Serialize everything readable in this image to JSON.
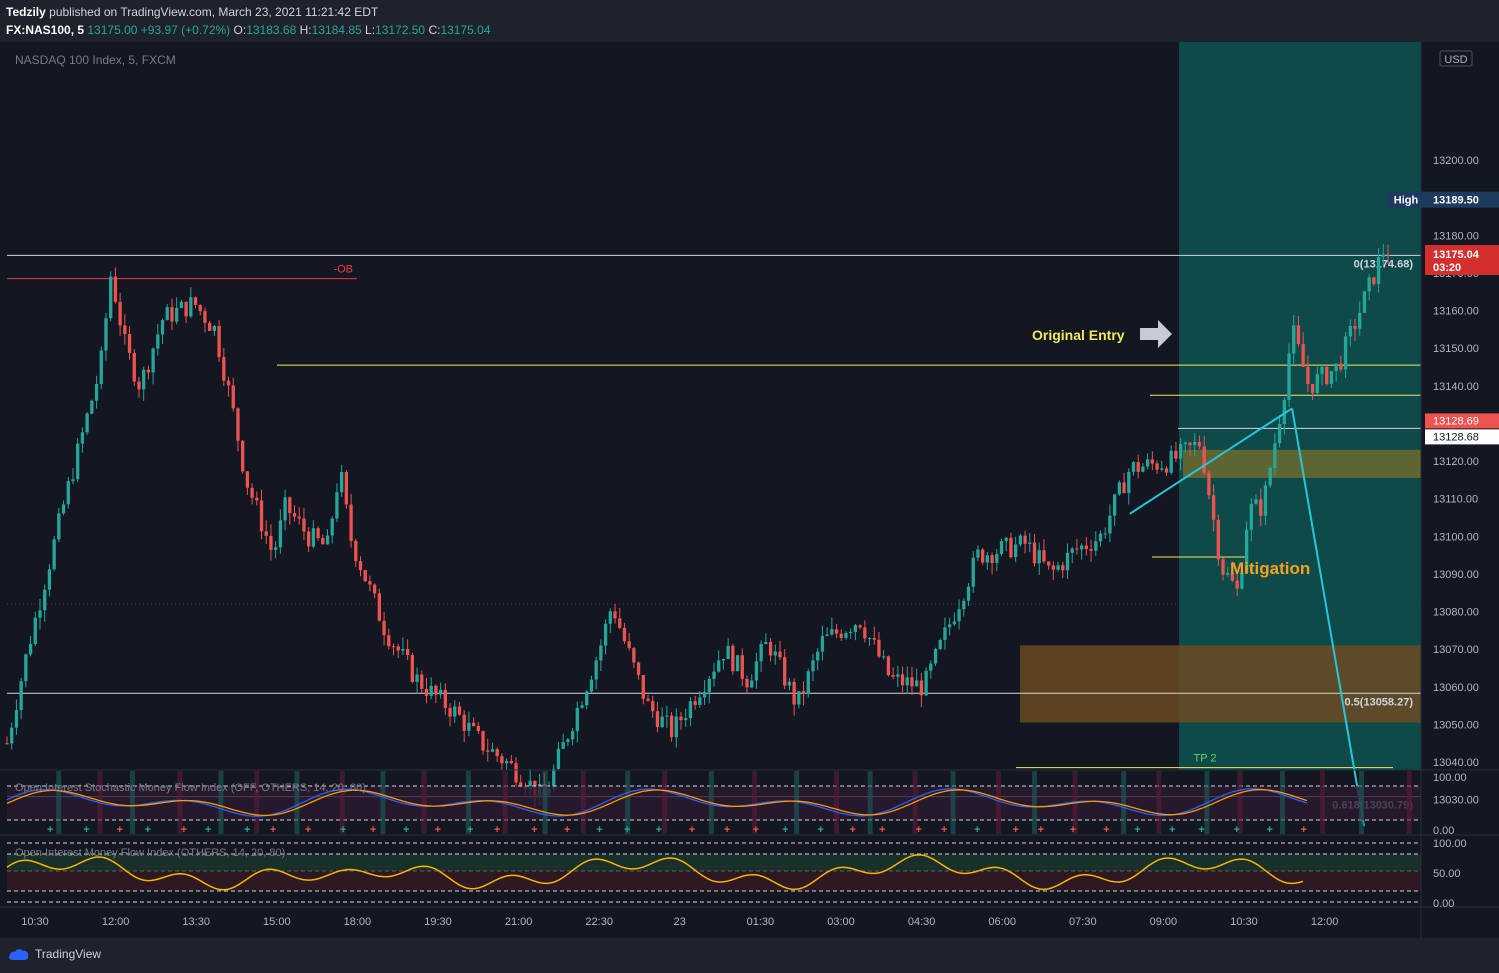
{
  "header": {
    "author": "Tedzily",
    "published_text": "published on TradingView.com, March 23, 2021 11:21:42 EDT",
    "symbol": "FX:NAS100, 5",
    "last": "13175.00",
    "change": "+93.97 (+0.72%)",
    "o_label": "O:",
    "o_value": "13183.68",
    "h_label": "H:",
    "h_value": "13184.85",
    "l_label": "L:",
    "l_value": "13172.50",
    "c_label": "C:",
    "c_value": "13175.04"
  },
  "chart_data": {
    "type": "candlestick",
    "title": "NASDAQ 100 Index, 5, FXCM",
    "currency": "USD",
    "ylim": [
      13023,
      13217
    ],
    "y_ticks": [
      13030,
      13040,
      13050,
      13060,
      13070,
      13080,
      13090,
      13100,
      13110,
      13120,
      13130,
      13140,
      13150,
      13160,
      13170,
      13180,
      13190,
      13200
    ],
    "x_ticks": [
      "10:30",
      "12:00",
      "13:30",
      "15:00",
      "18:00",
      "19:30",
      "21:00",
      "22:30",
      "23",
      "01:30",
      "03:00",
      "04:30",
      "06:00",
      "07:30",
      "09:00",
      "10:30",
      "12:00"
    ],
    "bar_count": 300,
    "bar_window": [
      0,
      295
    ],
    "price_path": [
      [
        0,
        13045
      ],
      [
        10,
        13070
      ],
      [
        28,
        13110
      ],
      [
        45,
        13145
      ],
      [
        50,
        13170
      ],
      [
        57,
        13150
      ],
      [
        64,
        13140
      ],
      [
        75,
        13158
      ],
      [
        90,
        13162
      ],
      [
        100,
        13155
      ],
      [
        108,
        13135
      ],
      [
        115,
        13115
      ],
      [
        128,
        13095
      ],
      [
        134,
        13108
      ],
      [
        145,
        13100
      ],
      [
        154,
        13097
      ],
      [
        160,
        13118
      ],
      [
        165,
        13100
      ],
      [
        175,
        13085
      ],
      [
        182,
        13075
      ],
      [
        197,
        13062
      ],
      [
        205,
        13058
      ],
      [
        216,
        13053
      ],
      [
        228,
        13045
      ],
      [
        240,
        13040
      ],
      [
        250,
        13035
      ],
      [
        258,
        13030
      ],
      [
        268,
        13045
      ],
      [
        285,
        13070
      ],
      [
        291,
        13082
      ],
      [
        297,
        13072
      ],
      [
        308,
        13055
      ],
      [
        320,
        13048
      ],
      [
        345,
        13070
      ],
      [
        356,
        13062
      ],
      [
        366,
        13072
      ],
      [
        380,
        13055
      ],
      [
        392,
        13072
      ],
      [
        410,
        13078
      ],
      [
        425,
        13062
      ],
      [
        441,
        13060
      ],
      [
        452,
        13075
      ],
      [
        467,
        13095
      ],
      [
        490,
        13098
      ],
      [
        502,
        13090
      ],
      [
        513,
        13096
      ],
      [
        526,
        13100
      ],
      [
        540,
        13118
      ],
      [
        560,
        13120
      ],
      [
        574,
        13125
      ],
      [
        584,
        13092
      ],
      [
        592,
        13085
      ],
      [
        597,
        13107
      ],
      [
        604,
        13108
      ],
      [
        614,
        13138
      ],
      [
        618,
        13155
      ],
      [
        626,
        13140
      ],
      [
        640,
        13145
      ],
      [
        662,
        13176
      ],
      [
        680,
        13178
      ]
    ],
    "plot_window": [
      0,
      680
    ],
    "price_points": [
      {
        "label": "High",
        "value": "13189.50"
      },
      {
        "label": "last",
        "value": "13175.04",
        "countdown": "03:20"
      },
      {
        "label": "line",
        "value": "13128.69"
      },
      {
        "label": "line",
        "value": "13128.68"
      }
    ],
    "fib_levels": [
      {
        "label": "0(13174.68)",
        "value": 13174.68
      },
      {
        "label": "0.5(13058.27)",
        "value": 13058.27
      },
      {
        "label": "0.618(13030.79)",
        "value": 13030.79
      }
    ],
    "horizontal_lines": [
      {
        "label": "-OB",
        "value": 13168.5,
        "color": "#f23645"
      },
      {
        "value": 13145.5,
        "color": "#f5e663"
      },
      {
        "value": 13137.5,
        "color": "#f5e663"
      },
      {
        "value": 13094.5,
        "color": "#f5e663"
      },
      {
        "label": "TP 2",
        "value": 13038.5,
        "color": "#f5e663"
      }
    ],
    "zones": [
      {
        "value_top": 13123,
        "value_bottom": 13115.5,
        "color": "#6b6b2e"
      },
      {
        "value_top": 13071,
        "value_bottom": 13050.5,
        "color": "#6b4a22"
      }
    ],
    "annotations": [
      {
        "text": "Original Entry",
        "color": "#f5e663"
      },
      {
        "text": "Mitigation",
        "color": "#f7a21b"
      }
    ],
    "indicators": [
      {
        "name": "Open Interest Stochastic Money Flow Index (OFF, OTHERS, 14, 20, 80)",
        "ticks": [
          "100.00",
          "0.00"
        ]
      },
      {
        "name": "Open Interest Money Flow Index (OTHERS, 14, 20, 80)",
        "ticks": [
          "100.00",
          "50.00",
          "0.00"
        ]
      }
    ],
    "colors": {
      "up": "#26a69a",
      "down": "#ef5350",
      "background": "#131722",
      "highlight": "#0f4a4a"
    }
  },
  "footer": {
    "brand": "TradingView"
  }
}
